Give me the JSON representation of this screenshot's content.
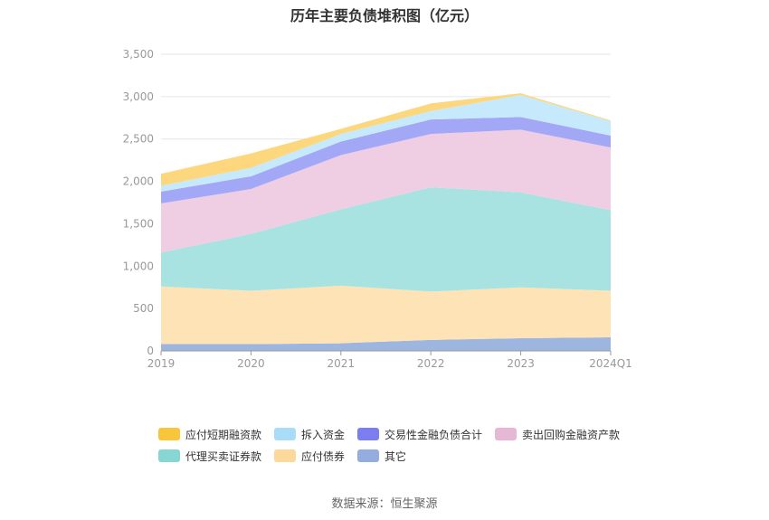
{
  "chart_data": {
    "type": "area",
    "stacked": true,
    "title": "历年主要负债堆积图（亿元）",
    "xlabel": "",
    "ylabel": "",
    "categories": [
      "2019",
      "2020",
      "2021",
      "2022",
      "2023",
      "2024Q1"
    ],
    "ylim": [
      0,
      3500
    ],
    "yticks": [
      0,
      500,
      1000,
      1500,
      2000,
      2500,
      3000,
      3500
    ],
    "ytick_labels": [
      "0",
      "500",
      "1,000",
      "1,500",
      "2,000",
      "2,500",
      "3,000",
      "3,500"
    ],
    "grid": true,
    "legend_position": "bottom",
    "series": [
      {
        "name": "其它",
        "color": "#9db6df",
        "values": [
          80,
          80,
          90,
          130,
          150,
          160
        ]
      },
      {
        "name": "应付债券",
        "color": "#fde3b5",
        "values": [
          680,
          630,
          680,
          570,
          600,
          550
        ]
      },
      {
        "name": "代理买卖证券款",
        "color": "#a8e3e1",
        "values": [
          400,
          670,
          900,
          1230,
          1120,
          950
        ]
      },
      {
        "name": "卖出回购金融资产款",
        "color": "#efcde3",
        "values": [
          580,
          530,
          640,
          630,
          740,
          740
        ]
      },
      {
        "name": "交易性金融负债合计",
        "color": "#a2a8f6",
        "values": [
          140,
          150,
          160,
          170,
          150,
          140
        ]
      },
      {
        "name": "拆入资金",
        "color": "#c6e9fb",
        "values": [
          70,
          100,
          90,
          100,
          260,
          170
        ]
      },
      {
        "name": "应付短期融资款",
        "color": "#fdd77d",
        "values": [
          140,
          170,
          60,
          90,
          20,
          10
        ]
      }
    ],
    "legend_order": [
      "应付短期融资款",
      "拆入资金",
      "交易性金融负债合计",
      "卖出回购金融资产款",
      "代理买卖证券款",
      "应付债券",
      "其它"
    ],
    "legend_colors": {
      "应付短期融资款": "#f9c53a",
      "拆入资金": "#a8dcf8",
      "交易性金融负债合计": "#7b7ef0",
      "卖出回购金融资产款": "#e6b8d6",
      "代理买卖证券款": "#86d6d4",
      "应付债券": "#fcd89a",
      "其它": "#93aede"
    }
  },
  "source": "数据来源：恒生聚源"
}
